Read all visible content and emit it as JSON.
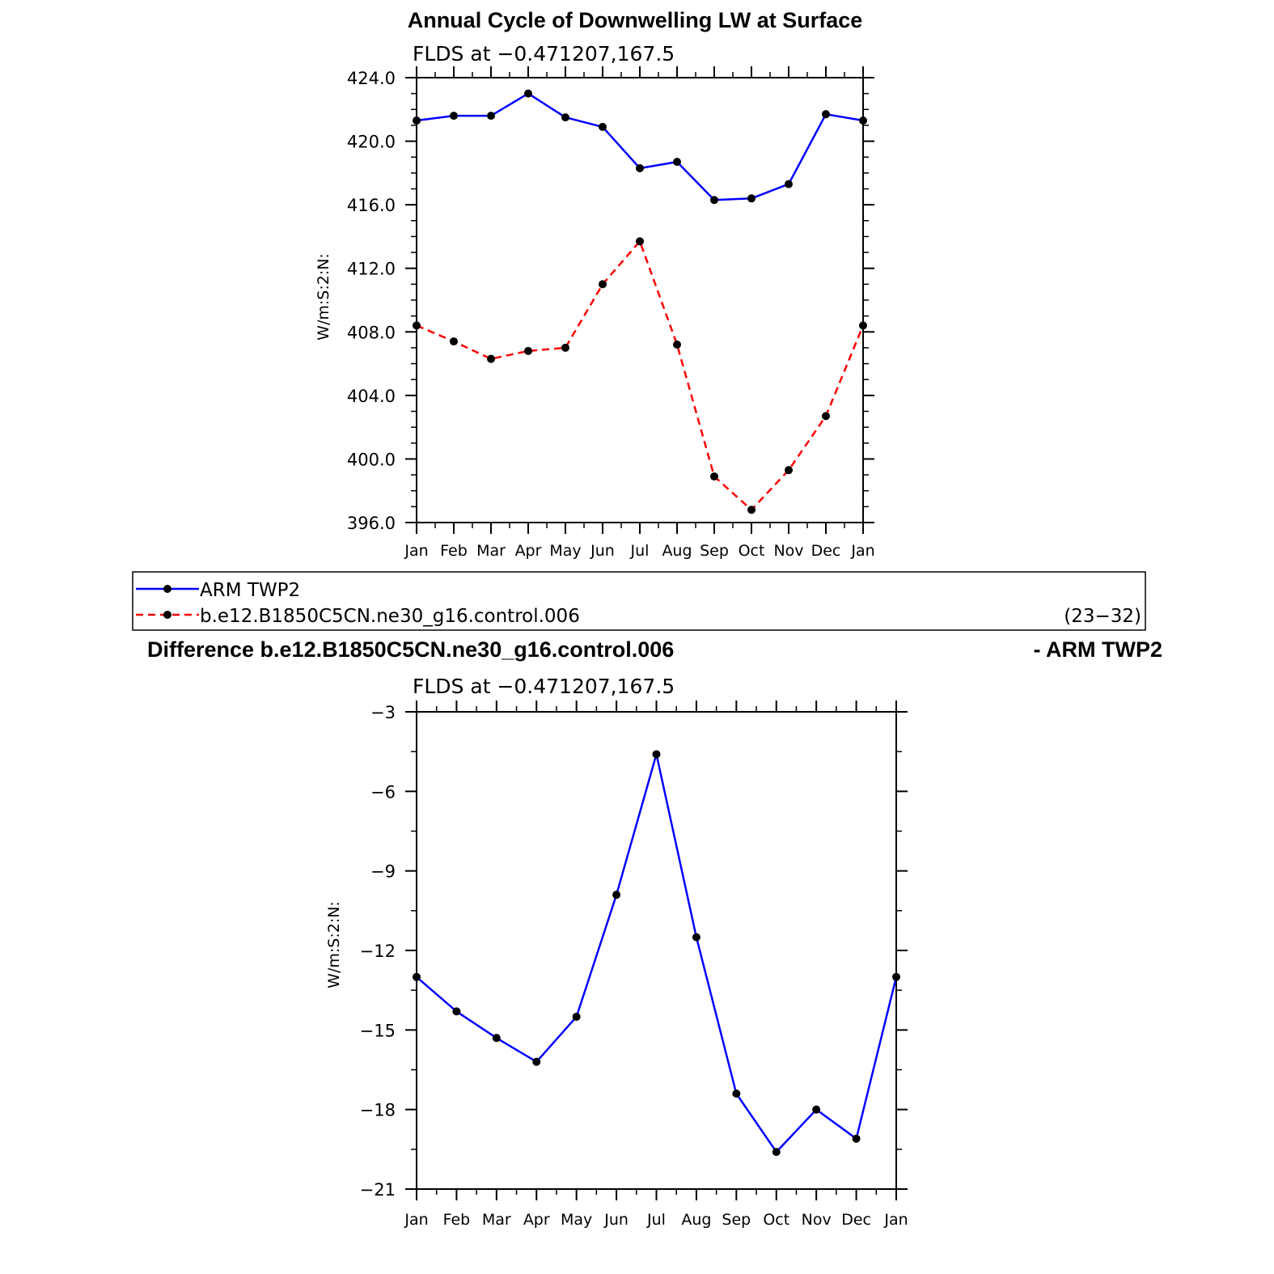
{
  "legend": {
    "entries": [
      {
        "name": "ARM TWP2",
        "color": "#0000ff",
        "dash": "solid"
      },
      {
        "name": "b.e12.B1850C5CN.ne30_g16.control.006",
        "color": "#ff0000",
        "dash": "dashed"
      }
    ],
    "note": "(23−32)"
  },
  "chart_data": [
    {
      "type": "line",
      "title": "Annual Cycle of Downwelling LW at Surface",
      "subtitle": "FLDS at −0.471207,167.5",
      "ylabel": "W/m:S:2:N:",
      "categories": [
        "Jan",
        "Feb",
        "Mar",
        "Apr",
        "May",
        "Jun",
        "Jul",
        "Aug",
        "Sep",
        "Oct",
        "Nov",
        "Dec",
        "Jan"
      ],
      "ylim": [
        396,
        424
      ],
      "yticks": [
        396,
        400,
        404,
        408,
        412,
        416,
        420,
        424
      ],
      "yticklabels": [
        "396.0",
        "400.0",
        "404.0",
        "408.0",
        "412.0",
        "416.0",
        "420.0",
        "424.0"
      ],
      "series": [
        {
          "name": "ARM TWP2",
          "color": "#0000ff",
          "dash": "solid",
          "values": [
            421.3,
            421.6,
            421.6,
            423.0,
            421.5,
            420.9,
            418.3,
            418.7,
            416.3,
            416.4,
            417.3,
            421.7,
            421.3
          ]
        },
        {
          "name": "b.e12.B1850C5CN.ne30_g16.control.006",
          "color": "#ff0000",
          "dash": "dashed",
          "values": [
            408.4,
            407.4,
            406.3,
            406.8,
            407.0,
            411.0,
            413.7,
            407.2,
            398.9,
            396.8,
            399.3,
            402.7,
            408.4
          ]
        }
      ]
    },
    {
      "type": "line",
      "title": "Difference b.e12.B1850C5CN.ne30_g16.control.006",
      "title_right": "- ARM TWP2",
      "subtitle": "FLDS at −0.471207,167.5",
      "ylabel": "W/m:S:2:N:",
      "categories": [
        "Jan",
        "Feb",
        "Mar",
        "Apr",
        "May",
        "Jun",
        "Jul",
        "Aug",
        "Sep",
        "Oct",
        "Nov",
        "Dec",
        "Jan"
      ],
      "ylim": [
        -21,
        -3
      ],
      "yticks": [
        -21,
        -18,
        -15,
        -12,
        -9,
        -6,
        -3
      ],
      "yticklabels": [
        "−21",
        "−18",
        "−15",
        "−12",
        "−9",
        "−6",
        "−3"
      ],
      "series": [
        {
          "color": "#0000ff",
          "dash": "solid",
          "values": [
            -13.0,
            -14.3,
            -15.3,
            -16.2,
            -14.5,
            -9.9,
            -4.6,
            -11.5,
            -17.4,
            -19.6,
            -18.0,
            -19.1,
            -13.0
          ]
        }
      ]
    }
  ]
}
